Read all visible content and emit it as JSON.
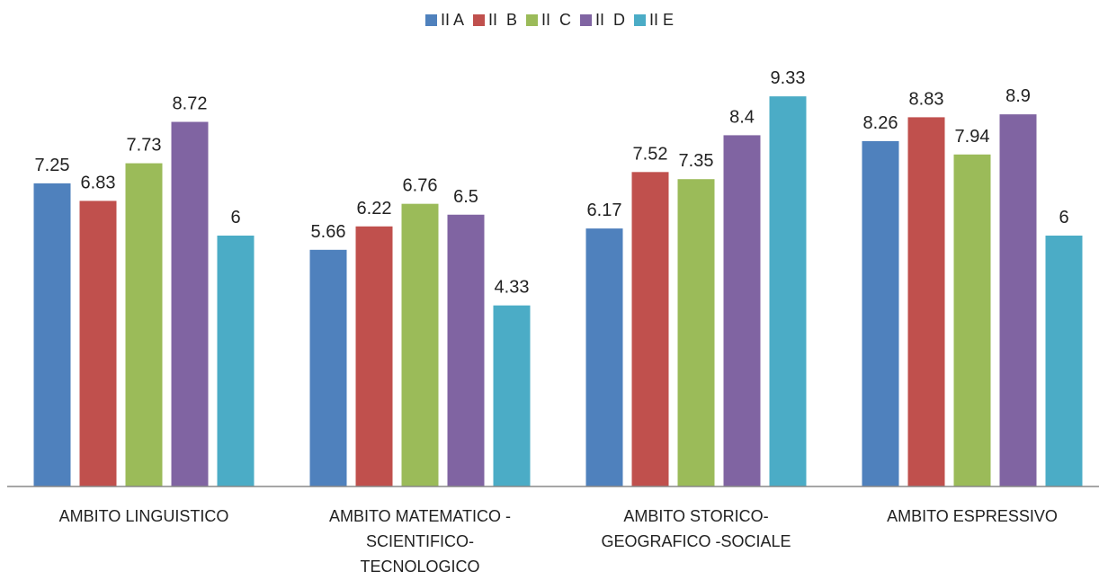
{
  "chart_data": {
    "type": "bar",
    "categories": [
      "AMBITO LINGUISTICO",
      "AMBITO MATEMATICO - SCIENTIFICO-TECNOLOGICO",
      "AMBITO STORICO-GEOGRAFICO -SOCIALE",
      "AMBITO ESPRESSIVO"
    ],
    "series": [
      {
        "name": "II A",
        "color": "#4f81bd",
        "values": [
          7.25,
          5.66,
          6.17,
          8.26
        ]
      },
      {
        "name": "II  B",
        "color": "#c0504d",
        "values": [
          6.83,
          6.22,
          7.52,
          8.83
        ]
      },
      {
        "name": "II  C",
        "color": "#9bbb59",
        "values": [
          7.73,
          6.76,
          7.35,
          7.94
        ]
      },
      {
        "name": "II  D",
        "color": "#8064a2",
        "values": [
          8.72,
          6.5,
          8.4,
          8.9
        ]
      },
      {
        "name": "II E",
        "color": "#4bacc6",
        "values": [
          6,
          4.33,
          9.33,
          6
        ]
      }
    ],
    "ylim": [
      0,
      10
    ],
    "legend": "top"
  }
}
